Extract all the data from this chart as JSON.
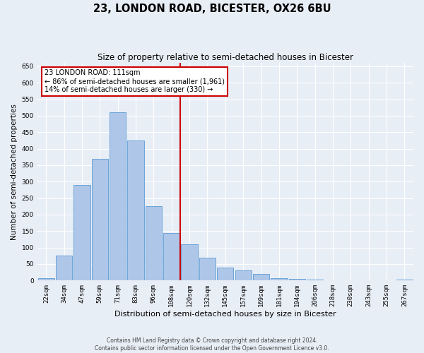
{
  "title": "23, LONDON ROAD, BICESTER, OX26 6BU",
  "subtitle": "Size of property relative to semi-detached houses in Bicester",
  "xlabel": "Distribution of semi-detached houses by size in Bicester",
  "ylabel": "Number of semi-detached properties",
  "categories": [
    "22sqm",
    "34sqm",
    "47sqm",
    "59sqm",
    "71sqm",
    "83sqm",
    "96sqm",
    "108sqm",
    "120sqm",
    "132sqm",
    "145sqm",
    "157sqm",
    "169sqm",
    "181sqm",
    "194sqm",
    "206sqm",
    "218sqm",
    "230sqm",
    "243sqm",
    "255sqm",
    "267sqm"
  ],
  "values": [
    8,
    75,
    290,
    370,
    510,
    425,
    225,
    145,
    110,
    70,
    40,
    30,
    20,
    8,
    5,
    3,
    1,
    1,
    0,
    0,
    2
  ],
  "bar_color": "#aec6e8",
  "bar_edge_color": "#5b9bd5",
  "vline_x": 7.5,
  "vline_label": "23 LONDON ROAD: 111sqm",
  "annotation_line1": "← 86% of semi-detached houses are smaller (1,961)",
  "annotation_line2": "14% of semi-detached houses are larger (330) →",
  "ylim": [
    0,
    660
  ],
  "yticks": [
    0,
    50,
    100,
    150,
    200,
    250,
    300,
    350,
    400,
    450,
    500,
    550,
    600,
    650
  ],
  "footer1": "Contains HM Land Registry data © Crown copyright and database right 2024.",
  "footer2": "Contains public sector information licensed under the Open Government Licence v3.0.",
  "bg_color": "#e8eef6",
  "plot_bg_color": "#e8eef6",
  "grid_color": "#ffffff",
  "title_fontsize": 10.5,
  "subtitle_fontsize": 8.5,
  "axis_label_fontsize": 7.5,
  "tick_fontsize": 6.5,
  "annotation_box_edge_color": "#cc0000",
  "vline_color": "#cc0000"
}
